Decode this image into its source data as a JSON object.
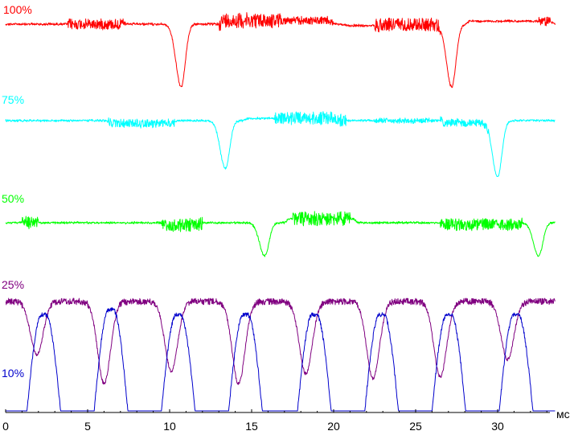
{
  "chart_data": {
    "type": "line",
    "title": "",
    "xlabel": "мс",
    "ylabel": "",
    "xlim": [
      0,
      33.5
    ],
    "x_ticks": [
      "0",
      "5",
      "10",
      "15",
      "20",
      "25",
      "30"
    ],
    "grid": false,
    "series": [
      {
        "name": "100%",
        "color": "#ff0000",
        "baseline_level": 0.0,
        "dips": [
          {
            "x": 10.7,
            "depth": 1.0
          },
          {
            "x": 27.2,
            "depth": 1.0
          }
        ],
        "noise_bands": [
          [
            3.8,
            7.3,
            0.35
          ],
          [
            13.0,
            16.8,
            0.5
          ],
          [
            16.8,
            20.0,
            0.25
          ],
          [
            22.5,
            26.5,
            0.45
          ],
          [
            32.5,
            33.2,
            0.3
          ]
        ],
        "level_shifts": [
          [
            13.0,
            20.0,
            -0.25
          ],
          [
            20.5,
            23.0,
            0.1
          ],
          [
            28.0,
            33.5,
            -0.2
          ]
        ]
      },
      {
        "name": "75%",
        "color": "#00ffff",
        "baseline_level": 0.0,
        "dips": [
          {
            "x": 13.4,
            "depth": 0.85
          },
          {
            "x": 30.0,
            "depth": 1.0
          }
        ],
        "noise_bands": [
          [
            6.2,
            10.3,
            0.35
          ],
          [
            16.3,
            20.8,
            0.55
          ],
          [
            22.5,
            26.0,
            0.2
          ],
          [
            26.5,
            29.5,
            0.35
          ]
        ],
        "level_shifts": [
          [
            6.2,
            10.5,
            0.25
          ],
          [
            14.5,
            20.5,
            -0.2
          ],
          [
            26.5,
            29.5,
            0.2
          ]
        ]
      },
      {
        "name": "50%",
        "color": "#00ff00",
        "baseline_level": 0.0,
        "dips": [
          {
            "x": 15.8,
            "depth": 0.9
          },
          {
            "x": 32.5,
            "depth": 0.9
          }
        ],
        "noise_bands": [
          [
            1.0,
            2.0,
            0.55
          ],
          [
            9.5,
            12.0,
            0.55
          ],
          [
            17.5,
            21.0,
            0.6
          ],
          [
            26.5,
            31.5,
            0.5
          ]
        ],
        "level_shifts": [
          [
            9.5,
            12.0,
            0.2
          ],
          [
            17.0,
            21.5,
            -0.35
          ],
          [
            26.5,
            31.5,
            0.15
          ]
        ]
      },
      {
        "name": "25%",
        "color": "#800080",
        "baseline_level": 1.0,
        "dip_centers": [
          1.9,
          6.0,
          10.1,
          14.2,
          18.3,
          22.4,
          26.5,
          30.6
        ],
        "dip_floors": [
          0.45,
          0.15,
          0.28,
          0.15,
          0.25,
          0.2,
          0.22,
          0.4
        ]
      },
      {
        "name": "10%",
        "color": "#0000cc",
        "baseline_level": 0.0,
        "pulse_rises": [
          1.3,
          5.4,
          9.5,
          13.6,
          17.8,
          21.9,
          26.0,
          30.1
        ],
        "pulse_peaks": [
          0.95,
          1.0,
          0.95,
          0.95,
          0.95,
          0.95,
          0.95,
          0.95
        ]
      }
    ]
  }
}
